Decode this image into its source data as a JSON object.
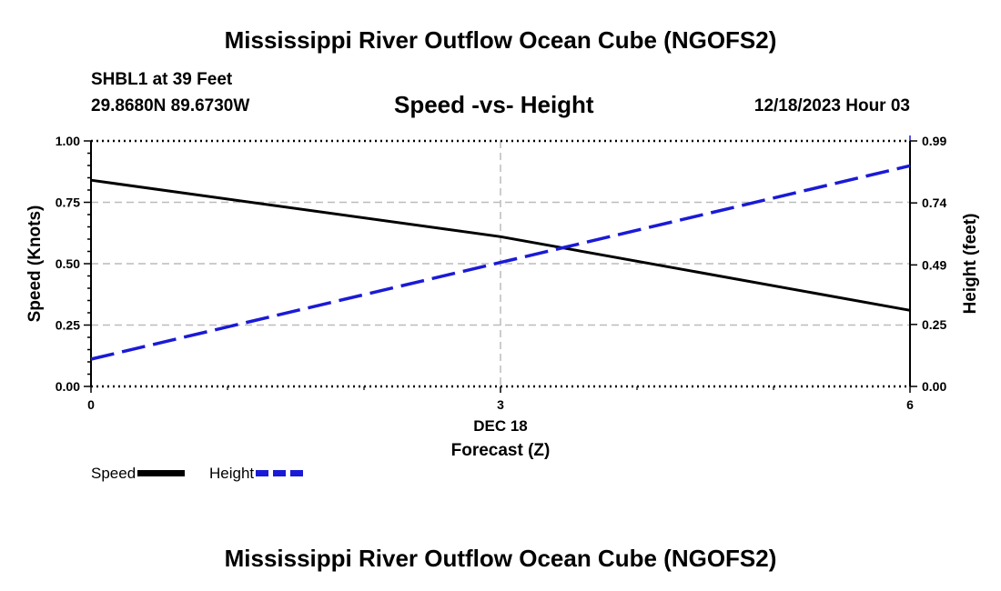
{
  "page_title": "Mississippi River Outflow Ocean Cube (NGOFS2)",
  "footer_title": "Mississippi River Outflow Ocean Cube (NGOFS2)",
  "station": "SHBL1 at 39 Feet",
  "coordinates": "29.8680N  89.6730W",
  "subtitle": "Speed -vs- Height",
  "datetime": "12/18/2023 Hour 03",
  "colors": {
    "speed": "#000000",
    "height": "#1a1ad6",
    "grid": "#bbbbbb"
  },
  "chart_data": {
    "type": "line",
    "title": "Speed -vs- Height",
    "xlabel": "Forecast (Z)",
    "x_date_label": "DEC 18",
    "xlim": [
      0,
      6
    ],
    "x_ticks": [
      0,
      3,
      6
    ],
    "x_tick_labels": [
      "0",
      "3",
      "6"
    ],
    "ylabel_left": "Speed (Knots)",
    "ylim_left": [
      0,
      1
    ],
    "y_ticks_left": [
      0,
      0.25,
      0.5,
      0.75,
      1.0
    ],
    "y_tick_labels_left": [
      "0.00",
      "0.25",
      "0.50",
      "0.75",
      "1.00"
    ],
    "ylabel_right": "Height (feet)",
    "ylim_right": [
      0,
      0.99
    ],
    "y_ticks_right": [
      0,
      0.25,
      0.49,
      0.74,
      0.99
    ],
    "y_tick_labels_right": [
      "0.00",
      "0.25",
      "0.49",
      "0.74",
      "0.99"
    ],
    "grid": true,
    "series": [
      {
        "name": "Speed",
        "axis": "left",
        "style": "solid",
        "x": [
          0,
          3,
          6
        ],
        "values": [
          0.84,
          0.61,
          0.31
        ]
      },
      {
        "name": "Height",
        "axis": "right",
        "style": "dashed",
        "x": [
          0,
          6
        ],
        "values": [
          0.11,
          0.89
        ]
      }
    ],
    "legend": [
      "Speed",
      "Height"
    ],
    "legend_position": "bottom-left"
  }
}
